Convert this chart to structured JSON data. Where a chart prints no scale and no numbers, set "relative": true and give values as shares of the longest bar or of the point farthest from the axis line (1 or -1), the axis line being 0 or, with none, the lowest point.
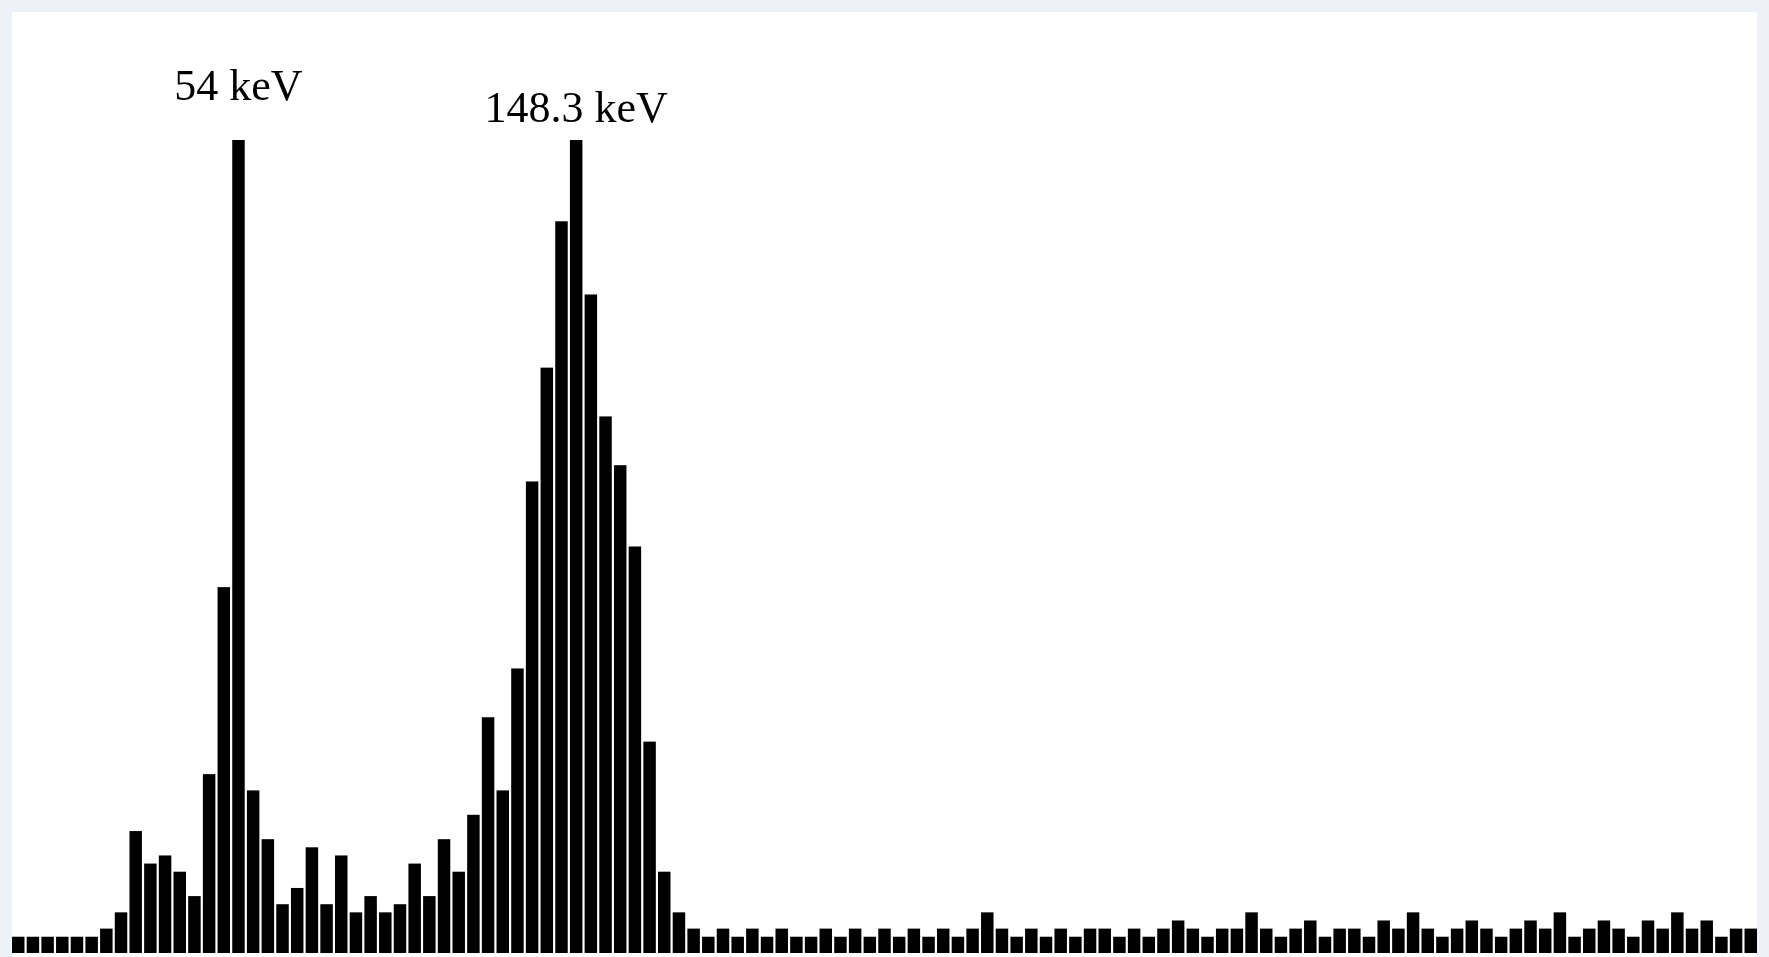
{
  "chart_data": {
    "type": "bar",
    "relative": true,
    "color": "#000000",
    "grid": false,
    "annotations": [
      "54 keV",
      "148.3 keV"
    ],
    "categories": [
      null,
      null,
      null,
      null,
      null,
      null,
      null,
      null,
      null,
      null,
      null,
      null,
      null,
      null,
      null,
      null,
      null,
      null,
      null,
      null,
      null,
      null,
      null,
      null,
      null,
      null,
      null,
      null,
      null,
      null,
      null,
      null,
      null,
      null,
      null,
      null,
      null,
      null,
      null,
      null,
      null,
      null,
      null,
      null,
      null,
      null,
      null,
      null,
      null,
      null,
      null,
      null,
      null,
      null,
      null,
      null,
      null,
      null,
      null,
      null,
      null,
      null,
      null,
      null,
      null,
      null,
      null,
      null,
      null,
      null,
      null,
      null,
      null,
      null,
      null,
      null,
      null,
      null,
      null,
      null,
      null,
      null,
      null,
      null,
      null,
      null,
      null,
      null,
      null,
      null,
      null,
      null,
      null,
      null,
      null,
      null,
      null,
      null,
      null,
      null,
      null,
      null,
      null,
      null,
      null,
      null,
      null,
      null,
      null,
      null,
      null,
      null,
      null,
      null,
      null,
      null,
      null,
      null,
      null
    ],
    "values": [
      0.02,
      0.02,
      0.02,
      0.02,
      0.02,
      0.02,
      0.03,
      0.05,
      0.15,
      0.11,
      0.12,
      0.1,
      0.07,
      0.22,
      0.45,
      1.0,
      0.2,
      0.14,
      0.06,
      0.08,
      0.13,
      0.06,
      0.12,
      0.05,
      0.07,
      0.05,
      0.06,
      0.11,
      0.07,
      0.14,
      0.1,
      0.17,
      0.29,
      0.2,
      0.35,
      0.58,
      0.72,
      0.9,
      1.0,
      0.81,
      0.66,
      0.6,
      0.5,
      0.26,
      0.1,
      0.05,
      0.03,
      0.02,
      0.03,
      0.02,
      0.03,
      0.02,
      0.03,
      0.02,
      0.02,
      0.03,
      0.02,
      0.03,
      0.02,
      0.03,
      0.02,
      0.03,
      0.02,
      0.03,
      0.02,
      0.03,
      0.05,
      0.03,
      0.02,
      0.03,
      0.02,
      0.03,
      0.02,
      0.03,
      0.03,
      0.02,
      0.03,
      0.02,
      0.03,
      0.04,
      0.03,
      0.02,
      0.03,
      0.03,
      0.05,
      0.03,
      0.02,
      0.03,
      0.04,
      0.02,
      0.03,
      0.03,
      0.02,
      0.04,
      0.03,
      0.05,
      0.03,
      0.02,
      0.03,
      0.04,
      0.03,
      0.02,
      0.03,
      0.04,
      0.03,
      0.05,
      0.02,
      0.03,
      0.04,
      0.03,
      0.02,
      0.04,
      0.03,
      0.05,
      0.03,
      0.04,
      0.02,
      0.03,
      0.03
    ]
  }
}
